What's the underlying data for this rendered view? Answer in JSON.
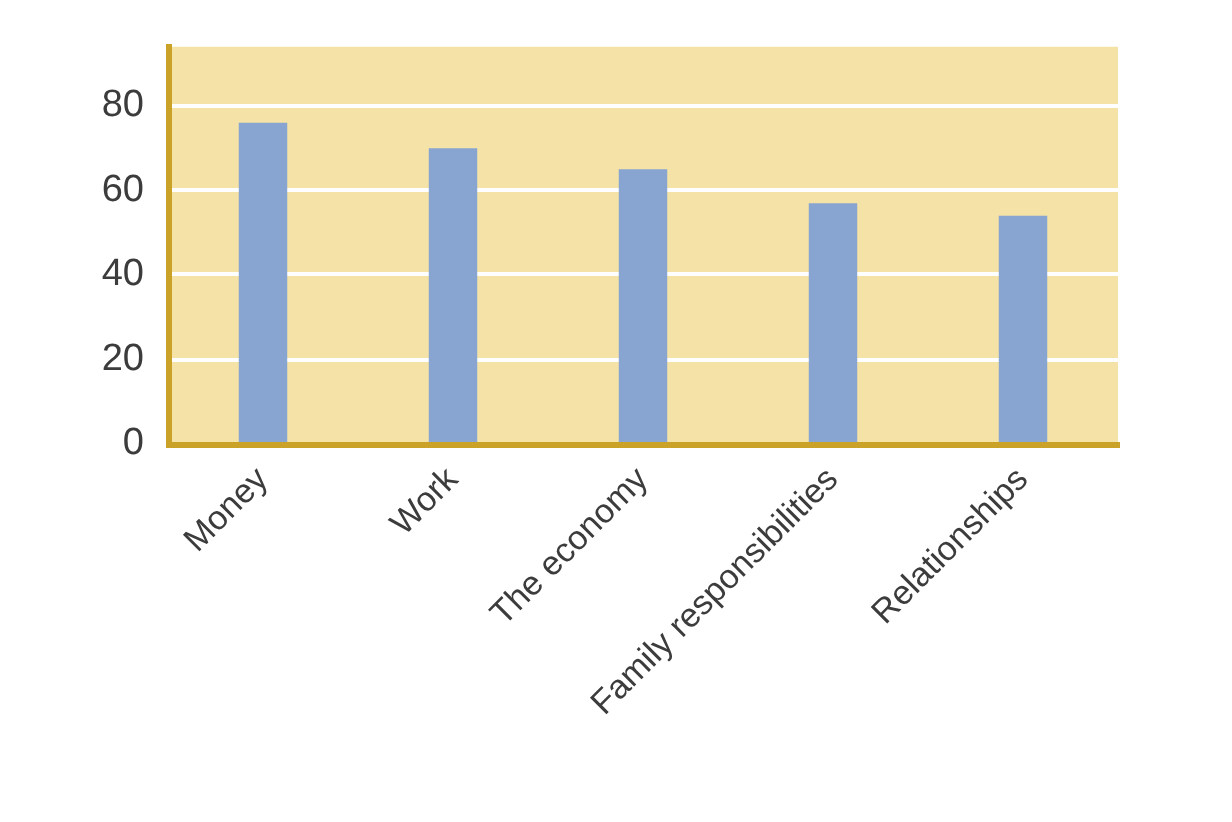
{
  "chart_data": {
    "type": "bar",
    "categories": [
      "Money",
      "Work",
      "The economy",
      "Family responsibilities",
      "Relationships"
    ],
    "values": [
      76,
      70,
      65,
      57,
      54
    ],
    "color": "#87a5d0",
    "ylim": [
      0,
      94
    ],
    "yticks": [
      0,
      20,
      40,
      60,
      80
    ],
    "grid": "y"
  }
}
